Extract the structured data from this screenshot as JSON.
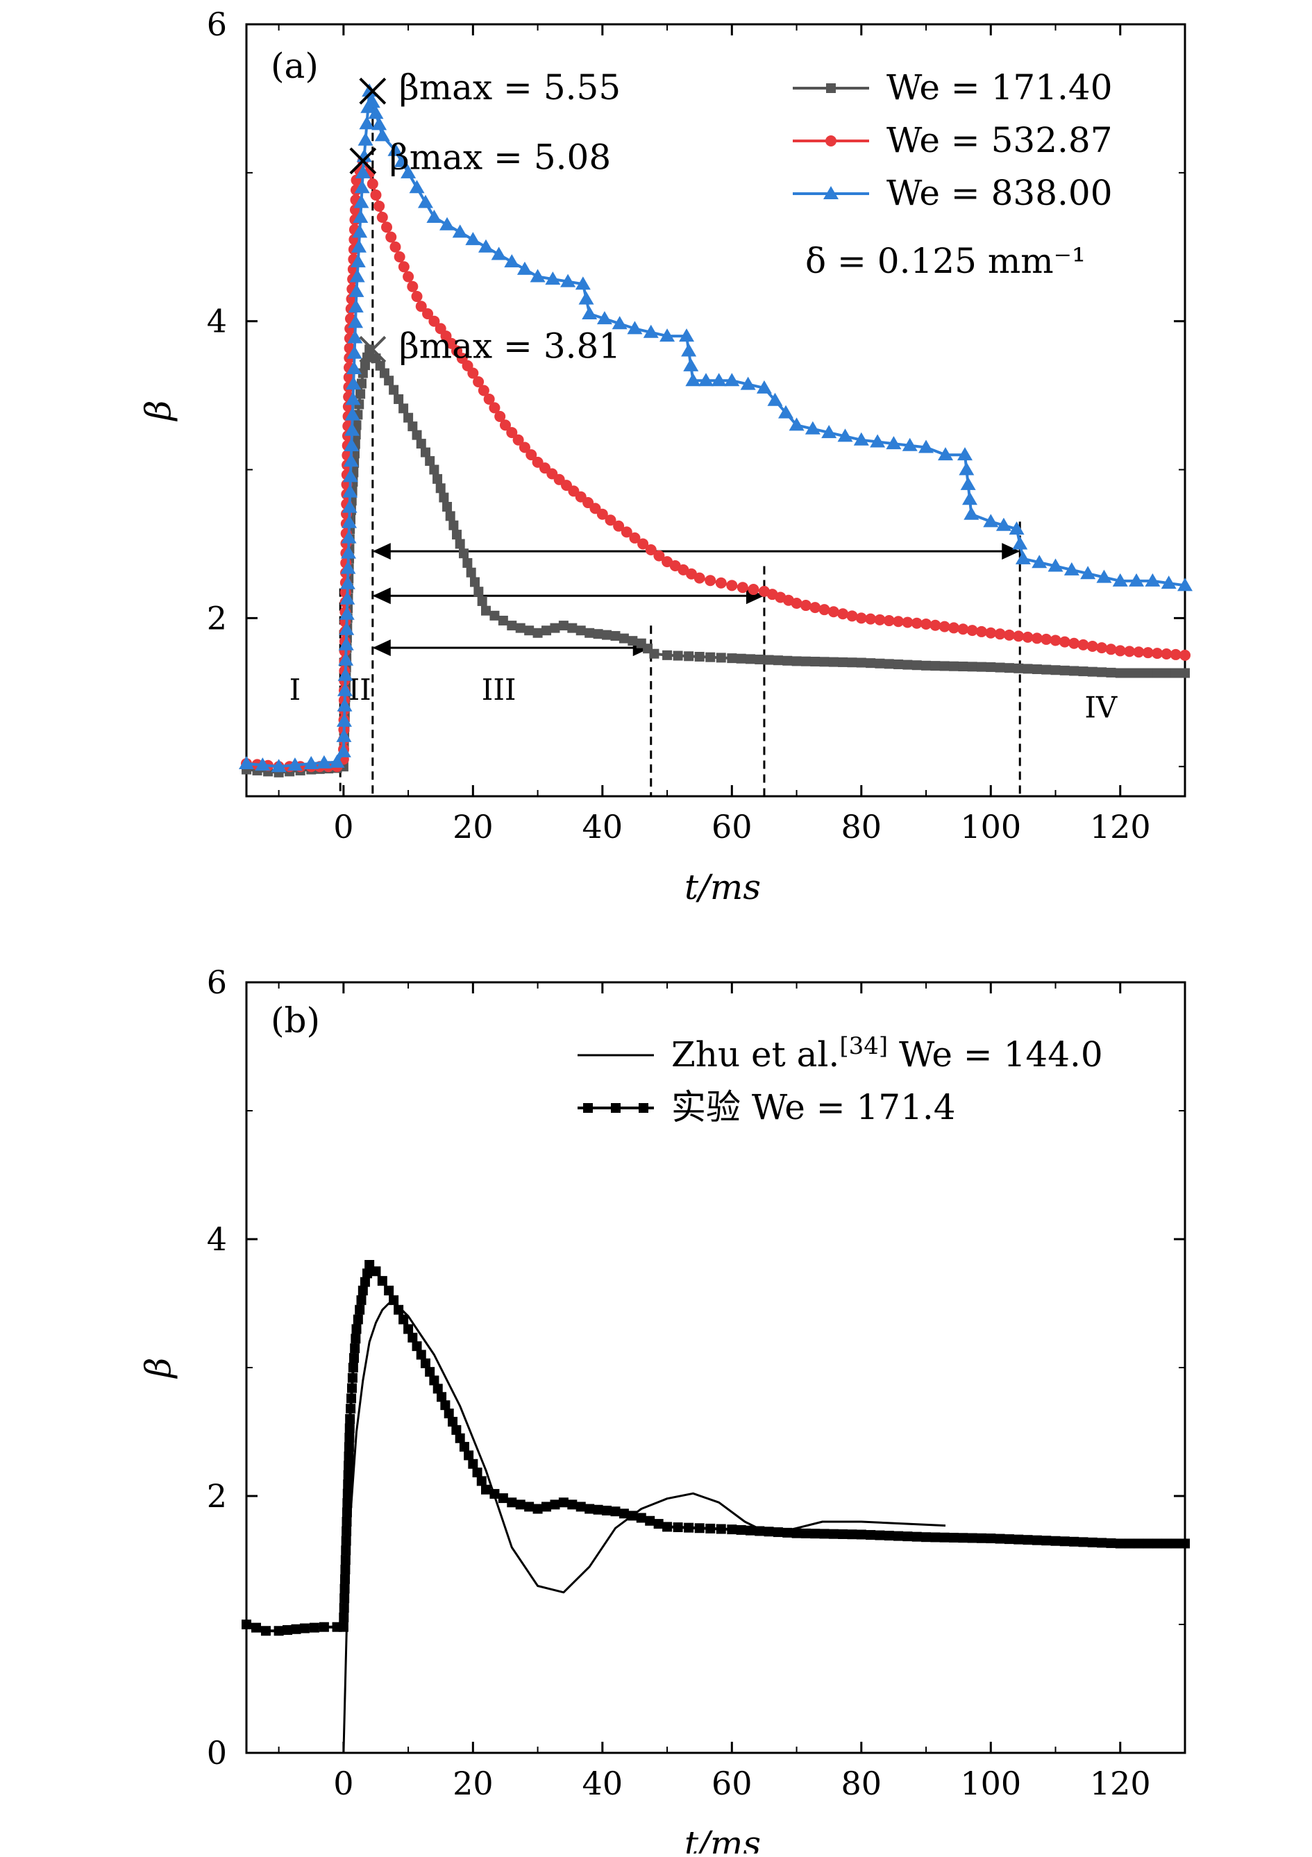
{
  "chart_data": [
    {
      "type": "line",
      "panel_label": "(a)",
      "xlabel": "t/ms",
      "ylabel": "β",
      "xlim": [
        -15,
        130
      ],
      "ylim": [
        0.8,
        6
      ],
      "xticks": [
        0,
        20,
        40,
        60,
        80,
        100,
        120
      ],
      "yticks": [
        2,
        4,
        6
      ],
      "legend_position": "top-right",
      "extra_legend_text": "δ = 0.125 mm⁻¹",
      "series": [
        {
          "name": "We = 171.40",
          "color": "#555555",
          "marker": "square",
          "x": [
            -15,
            -10,
            -5,
            -1,
            0,
            1,
            2,
            3,
            4,
            5,
            7,
            10,
            14,
            18,
            22,
            26,
            30,
            34,
            38,
            42,
            46,
            48,
            50,
            55,
            60,
            70,
            80,
            90,
            100,
            110,
            120,
            130
          ],
          "y": [
            0.98,
            0.96,
            0.98,
            0.99,
            1.0,
            2.6,
            3.3,
            3.65,
            3.81,
            3.75,
            3.6,
            3.35,
            3.0,
            2.5,
            2.05,
            1.95,
            1.9,
            1.95,
            1.9,
            1.88,
            1.83,
            1.76,
            1.75,
            1.74,
            1.73,
            1.71,
            1.7,
            1.68,
            1.67,
            1.65,
            1.63,
            1.63
          ]
        },
        {
          "name": "We = 532.87",
          "color": "#e8393c",
          "marker": "circle",
          "x": [
            -15,
            -10,
            -5,
            -1,
            0,
            0.5,
            1,
            1.5,
            2,
            3,
            4,
            5,
            6,
            8,
            10,
            12,
            15,
            20,
            25,
            30,
            40,
            50,
            55,
            60,
            65,
            70,
            80,
            90,
            100,
            110,
            120,
            130
          ],
          "y": [
            1.02,
            1.0,
            1.0,
            1.0,
            1.05,
            2.9,
            3.95,
            4.35,
            4.95,
            5.08,
            5.0,
            4.85,
            4.7,
            4.5,
            4.3,
            4.1,
            3.95,
            3.65,
            3.3,
            3.05,
            2.7,
            2.38,
            2.27,
            2.22,
            2.18,
            2.1,
            2.0,
            1.96,
            1.9,
            1.85,
            1.78,
            1.75
          ]
        },
        {
          "name": "We = 838.00",
          "color": "#2e7ed6",
          "marker": "triangle",
          "x": [
            -15,
            -10,
            -5,
            -1,
            0,
            1,
            2,
            3,
            4,
            5,
            6,
            8,
            10,
            14,
            20,
            26,
            30,
            37,
            38,
            45,
            50,
            53,
            54,
            60,
            65,
            70,
            80,
            90,
            93,
            96,
            97,
            100,
            104,
            105,
            110,
            120,
            125,
            130
          ],
          "y": [
            1.02,
            1.0,
            1.02,
            1.03,
            1.1,
            2.85,
            4.2,
            5.0,
            5.55,
            5.4,
            5.25,
            5.15,
            5.0,
            4.7,
            4.55,
            4.4,
            4.3,
            4.25,
            4.05,
            3.95,
            3.9,
            3.9,
            3.6,
            3.6,
            3.55,
            3.3,
            3.2,
            3.15,
            3.1,
            3.1,
            2.7,
            2.65,
            2.6,
            2.4,
            2.35,
            2.25,
            2.25,
            2.22
          ]
        }
      ],
      "peak_annotations": [
        {
          "label": "βmax = 5.55",
          "x": 4.5,
          "y": 5.55
        },
        {
          "label": "βmax = 5.08",
          "x": 3,
          "y": 5.08
        },
        {
          "label": "βmax = 3.81",
          "x": 4.5,
          "y": 3.81
        }
      ],
      "vertical_dashed_lines": [
        -0.5,
        4.5,
        47.5,
        65,
        104.5
      ],
      "duration_arrows": [
        {
          "from": 4.5,
          "to": 104.5,
          "y": 2.45
        },
        {
          "from": 4.5,
          "to": 65,
          "y": 2.15
        },
        {
          "from": 4.5,
          "to": 47.5,
          "y": 1.8
        }
      ],
      "regions": [
        {
          "label": "I",
          "x": -7.5,
          "y": 1.45
        },
        {
          "label": "II",
          "x": 2.5,
          "y": 1.45
        },
        {
          "label": "III",
          "x": 24,
          "y": 1.45
        },
        {
          "label": "IV",
          "x": 117,
          "y": 1.33
        }
      ]
    },
    {
      "type": "line",
      "panel_label": "(b)",
      "xlabel": "t/ms",
      "ylabel": "β",
      "xlim": [
        -15,
        130
      ],
      "ylim": [
        0,
        6
      ],
      "xticks": [
        0,
        20,
        40,
        60,
        80,
        100,
        120
      ],
      "yticks": [
        0,
        2,
        4,
        6
      ],
      "legend_position": "top-right",
      "series": [
        {
          "name": "Zhu et al.",
          "name_superscript": "[34]",
          "name_suffix": "We = 144.0",
          "color": "#000000",
          "marker": "none",
          "x": [
            0,
            0.5,
            1,
            2,
            3,
            4,
            5,
            6,
            7,
            8,
            10,
            14,
            18,
            22,
            26,
            30,
            34,
            38,
            42,
            46,
            50,
            54,
            58,
            62,
            66,
            70,
            74,
            80,
            93
          ],
          "y": [
            0,
            1.0,
            1.8,
            2.5,
            2.9,
            3.2,
            3.35,
            3.45,
            3.5,
            3.5,
            3.4,
            3.1,
            2.7,
            2.2,
            1.6,
            1.3,
            1.25,
            1.45,
            1.75,
            1.9,
            1.98,
            2.02,
            1.95,
            1.8,
            1.7,
            1.75,
            1.8,
            1.8,
            1.77
          ]
        },
        {
          "name": "实验",
          "name_suffix": "We = 171.4",
          "color": "#000000",
          "marker": "square",
          "x": [
            -15,
            -12,
            -10,
            -6,
            -3,
            -1,
            0,
            0.5,
            1,
            1.5,
            2,
            3,
            4,
            5,
            7,
            10,
            14,
            18,
            22,
            26,
            30,
            34,
            38,
            42,
            46,
            50,
            55,
            60,
            70,
            80,
            90,
            100,
            110,
            120,
            130
          ],
          "y": [
            1.0,
            0.95,
            0.95,
            0.97,
            0.98,
            0.98,
            0.98,
            1.8,
            2.6,
            3.0,
            3.3,
            3.6,
            3.8,
            3.75,
            3.6,
            3.3,
            2.9,
            2.45,
            2.05,
            1.95,
            1.9,
            1.95,
            1.9,
            1.88,
            1.83,
            1.76,
            1.75,
            1.74,
            1.71,
            1.7,
            1.68,
            1.67,
            1.65,
            1.63,
            1.63
          ]
        }
      ]
    }
  ]
}
